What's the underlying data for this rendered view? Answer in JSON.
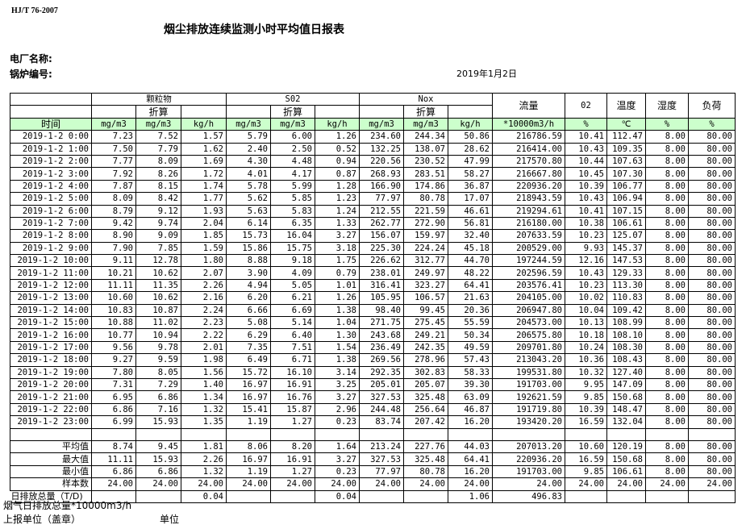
{
  "standard": "HJ/T  76-2007",
  "title": "烟尘排放连续监测小时平均值日报表",
  "plant_label": "电厂名称:",
  "boiler_label": "锅炉编号:",
  "date": "2019年1月2日",
  "header": {
    "groups": [
      "颗粒物",
      "S02",
      "Nox"
    ],
    "converted": "折算",
    "flow": "流量",
    "o2": "02",
    "temp": "温度",
    "humidity": "湿度",
    "load": "负荷",
    "time": "时间",
    "units": [
      "mg/m3",
      "mg/m3",
      "kg/h",
      "mg/m3",
      "mg/m3",
      "kg/h",
      "mg/m3",
      "mg/m3",
      "kg/h",
      "*10000m3/h",
      "%",
      "℃",
      "%",
      "%"
    ]
  },
  "rows": [
    [
      "2019-1-2 0:00",
      "7.23",
      "7.52",
      "1.57",
      "5.79",
      "6.00",
      "1.26",
      "234.60",
      "244.34",
      "50.86",
      "216786.59",
      "10.41",
      "112.47",
      "8.00",
      "80.00"
    ],
    [
      "2019-1-2 1:00",
      "7.50",
      "7.79",
      "1.62",
      "2.40",
      "2.50",
      "0.52",
      "132.25",
      "138.07",
      "28.62",
      "216414.00",
      "10.43",
      "109.35",
      "8.00",
      "80.00"
    ],
    [
      "2019-1-2 2:00",
      "7.77",
      "8.09",
      "1.69",
      "4.30",
      "4.48",
      "0.94",
      "220.56",
      "230.52",
      "47.99",
      "217570.80",
      "10.44",
      "107.63",
      "8.00",
      "80.00"
    ],
    [
      "2019-1-2 3:00",
      "7.92",
      "8.26",
      "1.72",
      "4.01",
      "4.17",
      "0.87",
      "268.93",
      "283.51",
      "58.27",
      "216667.80",
      "10.45",
      "107.30",
      "8.00",
      "80.00"
    ],
    [
      "2019-1-2 4:00",
      "7.87",
      "8.15",
      "1.74",
      "5.78",
      "5.99",
      "1.28",
      "166.90",
      "174.86",
      "36.87",
      "220936.20",
      "10.39",
      "106.77",
      "8.00",
      "80.00"
    ],
    [
      "2019-1-2 5:00",
      "8.09",
      "8.42",
      "1.77",
      "5.62",
      "5.85",
      "1.23",
      "77.97",
      "80.78",
      "17.07",
      "218943.59",
      "10.43",
      "106.94",
      "8.00",
      "80.00"
    ],
    [
      "2019-1-2 6:00",
      "8.79",
      "9.12",
      "1.93",
      "5.63",
      "5.83",
      "1.24",
      "212.55",
      "221.59",
      "46.61",
      "219294.61",
      "10.41",
      "107.15",
      "8.00",
      "80.00"
    ],
    [
      "2019-1-2 7:00",
      "9.42",
      "9.74",
      "2.04",
      "6.14",
      "6.35",
      "1.33",
      "262.77",
      "272.90",
      "56.81",
      "216180.00",
      "10.38",
      "106.61",
      "8.00",
      "80.00"
    ],
    [
      "2019-1-2 8:00",
      "8.90",
      "9.09",
      "1.85",
      "15.73",
      "16.04",
      "3.27",
      "156.07",
      "159.97",
      "32.40",
      "207633.59",
      "10.23",
      "125.07",
      "8.00",
      "80.00"
    ],
    [
      "2019-1-2 9:00",
      "7.90",
      "7.85",
      "1.59",
      "15.86",
      "15.75",
      "3.18",
      "225.30",
      "224.24",
      "45.18",
      "200529.00",
      "9.93",
      "145.37",
      "8.00",
      "80.00"
    ],
    [
      "2019-1-2 10:00",
      "9.11",
      "12.78",
      "1.80",
      "8.88",
      "9.18",
      "1.75",
      "226.62",
      "312.77",
      "44.70",
      "197244.59",
      "12.16",
      "147.53",
      "8.00",
      "80.00"
    ],
    [
      "2019-1-2 11:00",
      "10.21",
      "10.62",
      "2.07",
      "3.90",
      "4.09",
      "0.79",
      "238.01",
      "249.97",
      "48.22",
      "202596.59",
      "10.43",
      "129.33",
      "8.00",
      "80.00"
    ],
    [
      "2019-1-2 12:00",
      "11.11",
      "11.35",
      "2.26",
      "4.94",
      "5.05",
      "1.01",
      "316.41",
      "323.27",
      "64.41",
      "203576.41",
      "10.23",
      "113.30",
      "8.00",
      "80.00"
    ],
    [
      "2019-1-2 13:00",
      "10.60",
      "10.62",
      "2.16",
      "6.20",
      "6.21",
      "1.26",
      "105.95",
      "106.57",
      "21.63",
      "204105.00",
      "10.02",
      "110.83",
      "8.00",
      "80.00"
    ],
    [
      "2019-1-2 14:00",
      "10.83",
      "10.87",
      "2.24",
      "6.66",
      "6.69",
      "1.38",
      "98.40",
      "99.45",
      "20.36",
      "206947.80",
      "10.04",
      "109.42",
      "8.00",
      "80.00"
    ],
    [
      "2019-1-2 15:00",
      "10.88",
      "11.02",
      "2.23",
      "5.08",
      "5.14",
      "1.04",
      "271.75",
      "275.45",
      "55.59",
      "204573.00",
      "10.13",
      "108.99",
      "8.00",
      "80.00"
    ],
    [
      "2019-1-2 16:00",
      "10.77",
      "10.94",
      "2.22",
      "6.29",
      "6.40",
      "1.30",
      "243.68",
      "249.21",
      "50.34",
      "206575.80",
      "10.18",
      "108.10",
      "8.00",
      "80.00"
    ],
    [
      "2019-1-2 17:00",
      "9.56",
      "9.78",
      "2.01",
      "7.35",
      "7.51",
      "1.54",
      "236.49",
      "242.35",
      "49.59",
      "209701.80",
      "10.24",
      "108.30",
      "8.00",
      "80.00"
    ],
    [
      "2019-1-2 18:00",
      "9.27",
      "9.59",
      "1.98",
      "6.49",
      "6.71",
      "1.38",
      "269.56",
      "278.96",
      "57.43",
      "213043.20",
      "10.36",
      "108.43",
      "8.00",
      "80.00"
    ],
    [
      "2019-1-2 19:00",
      "7.80",
      "8.05",
      "1.56",
      "15.72",
      "16.10",
      "3.14",
      "292.35",
      "302.83",
      "58.33",
      "199531.80",
      "10.32",
      "127.40",
      "8.00",
      "80.00"
    ],
    [
      "2019-1-2 20:00",
      "7.31",
      "7.29",
      "1.40",
      "16.97",
      "16.91",
      "3.25",
      "205.01",
      "205.07",
      "39.30",
      "191703.00",
      "9.95",
      "147.09",
      "8.00",
      "80.00"
    ],
    [
      "2019-1-2 21:00",
      "6.95",
      "6.86",
      "1.34",
      "16.97",
      "16.76",
      "3.27",
      "327.53",
      "325.48",
      "63.09",
      "192621.59",
      "9.85",
      "150.68",
      "8.00",
      "80.00"
    ],
    [
      "2019-1-2 22:00",
      "6.86",
      "7.16",
      "1.32",
      "15.41",
      "15.87",
      "2.96",
      "244.48",
      "256.64",
      "46.87",
      "191719.80",
      "10.39",
      "148.47",
      "8.00",
      "80.00"
    ],
    [
      "2019-1-2 23:00",
      "6.99",
      "15.93",
      "1.35",
      "1.19",
      "1.27",
      "0.23",
      "83.74",
      "207.42",
      "16.20",
      "193420.20",
      "16.59",
      "132.04",
      "8.00",
      "80.00"
    ]
  ],
  "stats": [
    [
      "平均值",
      "8.74",
      "9.45",
      "1.81",
      "8.06",
      "8.20",
      "1.64",
      "213.24",
      "227.76",
      "44.03",
      "207013.20",
      "10.60",
      "120.19",
      "8.00",
      "80.00"
    ],
    [
      "最大值",
      "11.11",
      "15.93",
      "2.26",
      "16.97",
      "16.91",
      "3.27",
      "327.53",
      "325.48",
      "64.41",
      "220936.20",
      "16.59",
      "150.68",
      "8.00",
      "80.00"
    ],
    [
      "最小值",
      "6.86",
      "6.86",
      "1.32",
      "1.19",
      "1.27",
      "0.23",
      "77.97",
      "80.78",
      "16.20",
      "191703.00",
      "9.85",
      "106.61",
      "8.00",
      "80.00"
    ],
    [
      "样本数",
      "24.00",
      "24.00",
      "24.00",
      "24.00",
      "24.00",
      "24.00",
      "24.00",
      "24.00",
      "24.00",
      "24.00",
      "24.00",
      "24.00",
      "24.00",
      "24.00"
    ]
  ],
  "total": [
    "日排放总量（T/D)",
    "",
    "",
    "0.04",
    "",
    "",
    "0.04",
    "",
    "",
    "1.06",
    "496.83",
    "",
    "",
    "",
    ""
  ],
  "footer": {
    "flue_total": "烟气日排放总量*10000m3/h",
    "reporting_unit": "上报单位（盖章）",
    "unit": "单位"
  },
  "colors": {
    "unit_row_bg": "#ccffcc"
  }
}
